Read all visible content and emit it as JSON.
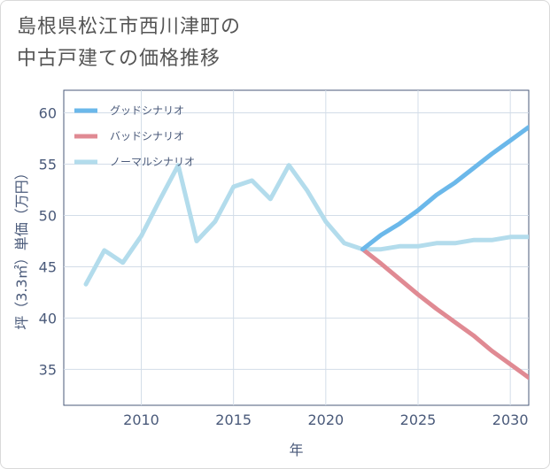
{
  "title_lines": [
    "島根県松江市西川津町の",
    "中古戸建ての価格推移"
  ],
  "chart_data": {
    "type": "line",
    "title": "島根県松江市西川津町の中古戸建ての価格推移",
    "xlabel": "年",
    "ylabel": "坪（3.3㎡）単価（万円）",
    "xlim": [
      2005.8,
      2031
    ],
    "ylim": [
      31.5,
      62.2
    ],
    "xticks": [
      2010,
      2015,
      2020,
      2025,
      2030
    ],
    "yticks": [
      35,
      40,
      45,
      50,
      55,
      60
    ],
    "grid": true,
    "legend_position": "top-left",
    "series": [
      {
        "name": "グッドシナリオ",
        "color": "#6bb8ea",
        "x": [
          2022,
          2023,
          2024,
          2025,
          2026,
          2027,
          2028,
          2029,
          2030,
          2031
        ],
        "y": [
          46.7,
          48.1,
          49.2,
          50.5,
          52.0,
          53.2,
          54.6,
          56.0,
          57.3,
          58.6
        ]
      },
      {
        "name": "バッドシナリオ",
        "color": "#e08a93",
        "x": [
          2022,
          2023,
          2024,
          2025,
          2026,
          2027,
          2028,
          2029,
          2030,
          2031
        ],
        "y": [
          46.7,
          45.3,
          43.8,
          42.3,
          40.9,
          39.6,
          38.3,
          36.8,
          35.5,
          34.2
        ]
      },
      {
        "name": "ノーマルシナリオ",
        "color": "#b3dcec",
        "x": [
          2007,
          2008,
          2009,
          2010,
          2011,
          2012,
          2013,
          2014,
          2015,
          2016,
          2017,
          2018,
          2019,
          2020,
          2021,
          2022,
          2023,
          2024,
          2025,
          2026,
          2027,
          2028,
          2029,
          2030,
          2031
        ],
        "y": [
          43.3,
          46.6,
          45.4,
          48.0,
          51.5,
          54.9,
          47.5,
          49.4,
          52.8,
          53.4,
          51.6,
          54.9,
          52.4,
          49.4,
          47.3,
          46.7,
          46.7,
          47.0,
          47.0,
          47.3,
          47.3,
          47.6,
          47.6,
          47.9,
          47.9
        ]
      }
    ]
  }
}
